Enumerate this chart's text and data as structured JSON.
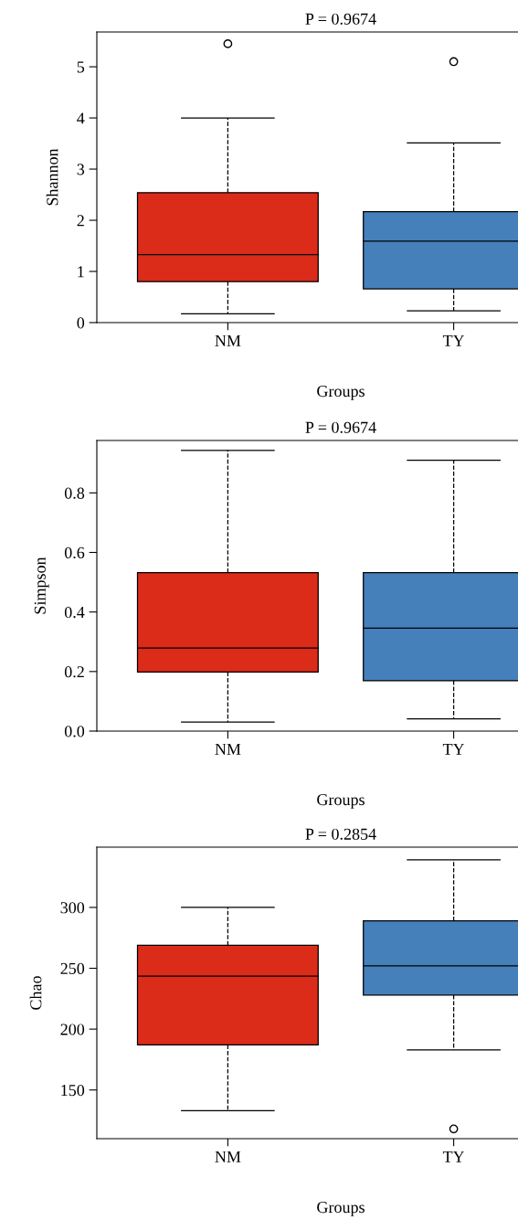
{
  "chart_data": [
    {
      "type": "box",
      "title": "P = 0.9674",
      "xlabel": "Groups",
      "ylabel": "Shannon",
      "categories": [
        "NM",
        "TY"
      ],
      "colors": [
        "#db2b19",
        "#4580bb"
      ],
      "ylim": [
        0,
        5.68
      ],
      "yticks": [
        0,
        1,
        2,
        3,
        4,
        5
      ],
      "grid": false,
      "legend": false,
      "line_style": "dashed",
      "boxes": [
        {
          "low": 0.17,
          "q1": 0.8,
          "median": 1.33,
          "q3": 2.54,
          "high": 4.0,
          "outliers": [
            5.45
          ]
        },
        {
          "low": 0.23,
          "q1": 0.66,
          "median": 1.59,
          "q3": 2.17,
          "high": 3.51,
          "outliers": [
            5.1
          ]
        }
      ]
    },
    {
      "type": "box",
      "title": "P = 0.9674",
      "xlabel": "Groups",
      "ylabel": "Simpson",
      "categories": [
        "NM",
        "TY"
      ],
      "colors": [
        "#db2b19",
        "#4580bb"
      ],
      "ylim": [
        0,
        0.976
      ],
      "yticks": [
        {
          "value": 0,
          "label": "0.0"
        },
        0.2,
        0.4,
        0.6,
        0.8
      ],
      "grid": false,
      "legend": false,
      "line_style": "dashed",
      "boxes": [
        {
          "low": 0.03,
          "q1": 0.198,
          "median": 0.279,
          "q3": 0.532,
          "high": 0.943
        },
        {
          "low": 0.041,
          "q1": 0.169,
          "median": 0.346,
          "q3": 0.532,
          "high": 0.91
        }
      ]
    },
    {
      "type": "box",
      "title": "P = 0.2854",
      "xlabel": "Groups",
      "ylabel": "Chao",
      "categories": [
        "NM",
        "TY"
      ],
      "colors": [
        "#db2b19",
        "#4580bb"
      ],
      "ylim": [
        110,
        349.5
      ],
      "yticks": [
        150,
        200,
        250,
        300
      ],
      "grid": false,
      "legend": false,
      "line_style": "dashed",
      "boxes": [
        {
          "low": 133,
          "q1": 187,
          "median": 243.5,
          "q3": 268.8,
          "high": 300
        },
        {
          "low": 183,
          "q1": 228,
          "median": 252,
          "q3": 289,
          "high": 339,
          "outliers": [
            118
          ]
        }
      ]
    }
  ]
}
